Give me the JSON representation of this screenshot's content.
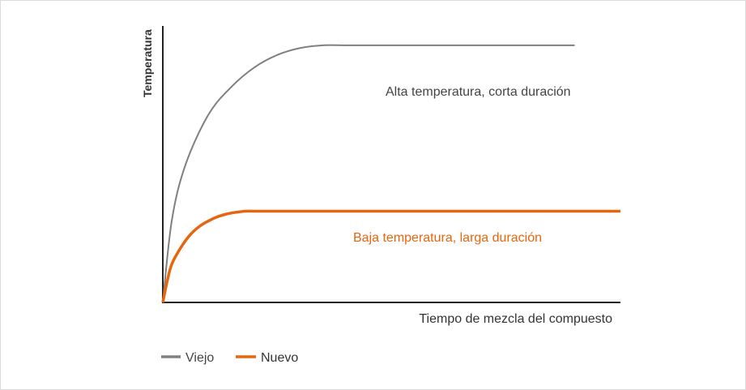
{
  "chart_data": {
    "type": "line",
    "title": "",
    "xlabel": "Tiempo de mezcla del compuesto",
    "ylabel": "Temperatura",
    "xlim": [
      0,
      100
    ],
    "ylim": [
      0,
      100
    ],
    "grid": false,
    "legend_position": "bottom-left",
    "series": [
      {
        "name": "Viejo",
        "color": "#808080",
        "annotation": "Alta temperatura, corta duración",
        "x": [
          0,
          2,
          5,
          10,
          15,
          20,
          25,
          30,
          35,
          40,
          45,
          50,
          55,
          60,
          65,
          70,
          75,
          80,
          85,
          90
        ],
        "y": [
          0,
          30,
          50,
          68,
          78,
          85,
          89.5,
          92,
          93,
          93,
          93,
          93,
          93,
          93,
          93,
          93,
          93,
          93,
          93,
          93
        ]
      },
      {
        "name": "Nuevo",
        "color": "#e8650f",
        "annotation": "Baja temperatura, larga duración",
        "x": [
          0,
          1,
          2,
          4,
          6,
          8,
          10,
          12,
          14,
          16,
          18,
          20,
          25,
          30,
          40,
          50,
          60,
          70,
          80,
          90,
          100
        ],
        "y": [
          0,
          8,
          14,
          20,
          24.5,
          27.5,
          29.5,
          31,
          32,
          32.6,
          33,
          33,
          33,
          33,
          33,
          33,
          33,
          33,
          33,
          33,
          33
        ]
      }
    ]
  }
}
